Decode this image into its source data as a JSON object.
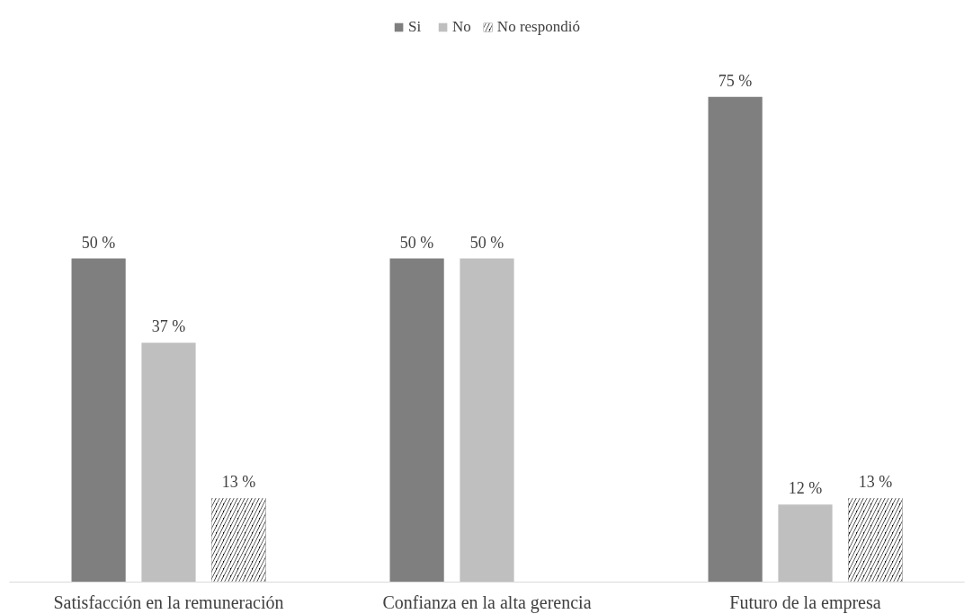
{
  "chart_data": {
    "type": "bar",
    "categories": [
      "Satisfacción en la remuneración",
      "Confianza en la alta gerencia",
      "Futuro de la empresa"
    ],
    "series": [
      {
        "name": "Si",
        "color": "#7f7f7f",
        "values": [
          50,
          50,
          75
        ],
        "value_labels": [
          "50 %",
          "50 %",
          "75 %"
        ]
      },
      {
        "name": "No",
        "color": "#bfbfbf",
        "values": [
          37,
          50,
          12
        ],
        "value_labels": [
          "37 %",
          "50 %",
          "12 %"
        ]
      },
      {
        "name": "No respondió",
        "color": "#000000",
        "values": [
          13,
          null,
          13
        ],
        "value_labels": [
          "13 %",
          null,
          "13 %"
        ]
      }
    ],
    "legend": "top",
    "grid": false,
    "tick_labels": "x"
  }
}
